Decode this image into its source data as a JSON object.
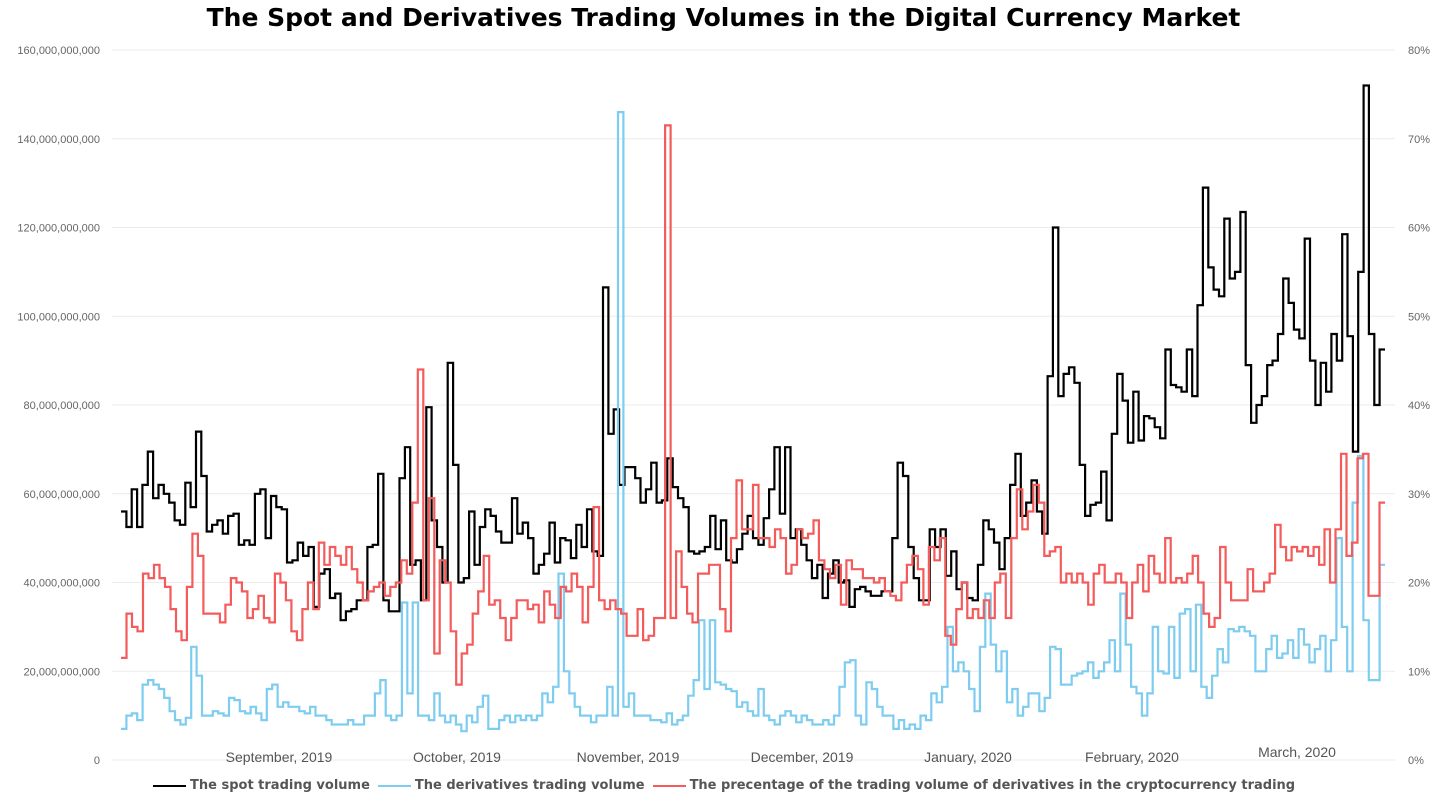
{
  "chart_data": {
    "type": "line",
    "title": "The Spot and Derivatives Trading Volumes in the Digital Currency Market",
    "x_labels": [
      "September, 2019",
      "October, 2019",
      "November, 2019",
      "December, 2019",
      "January, 2020",
      "February, 2020",
      "March, 2020"
    ],
    "y_left": {
      "ticks": [
        "0",
        "20,000,000,000",
        "40,000,000,000",
        "60,000,000,000",
        "80,000,000,000",
        "100,000,000,000",
        "120,000,000,000",
        "140,000,000,000",
        "160,000,000,000"
      ],
      "range": [
        0,
        160000000000
      ]
    },
    "y_right": {
      "ticks": [
        "0%",
        "10%",
        "20%",
        "30%",
        "40%",
        "50%",
        "60%",
        "70%",
        "80%"
      ],
      "range": [
        0,
        80
      ]
    },
    "series": [
      {
        "name": "The spot trading volume",
        "color": "#000000",
        "axis": "left",
        "unit": "billion",
        "values": [
          56,
          52.5,
          61,
          52.5,
          62,
          69.5,
          59,
          62,
          60,
          58,
          54,
          53,
          62.5,
          57,
          74,
          64,
          51.5,
          53,
          54,
          51,
          55,
          55.5,
          48.5,
          49.5,
          48.5,
          60,
          61,
          50,
          59.5,
          57,
          56.5,
          44.5,
          45,
          49,
          46,
          48,
          34.5,
          42,
          43,
          36.5,
          37.5,
          31.5,
          33.5,
          34,
          36,
          36,
          48,
          48.5,
          64.5,
          36,
          33.5,
          33.5,
          63.5,
          70.5,
          44,
          45,
          36,
          79.5,
          54,
          48,
          40,
          89.5,
          66.5,
          40,
          41,
          56,
          44,
          52.5,
          56.5,
          55,
          51.5,
          49,
          49,
          59,
          51,
          53.5,
          50,
          42,
          44,
          46.5,
          53.5,
          44.5,
          50,
          49.5,
          45.5,
          53,
          48,
          56.5,
          47,
          46,
          106.5,
          73.5,
          79,
          62,
          66,
          66,
          63.5,
          58,
          61,
          67,
          58,
          58.5,
          68,
          61.5,
          59,
          57,
          47,
          46.5,
          47,
          48,
          55,
          47.5,
          54,
          45,
          44.5,
          47.5,
          51,
          55,
          50,
          48.5,
          54.5,
          61,
          70.5,
          55.5,
          70.5,
          50,
          52,
          48.5,
          45,
          41,
          44,
          36.5,
          42,
          45,
          40,
          40.5,
          34.5,
          38.5,
          39,
          38,
          37,
          37,
          38,
          38,
          50,
          67,
          64,
          48,
          41,
          36,
          36,
          52,
          48,
          52,
          41.5,
          47,
          38.5,
          40,
          36.5,
          36,
          44,
          54,
          52,
          49,
          43,
          50,
          62,
          69,
          55,
          58,
          63,
          56,
          51,
          86.5,
          120,
          82,
          87,
          88.5,
          85,
          66.5,
          55,
          57.5,
          58,
          65,
          54,
          73.5,
          87,
          81,
          71.5,
          83,
          72,
          77.5,
          77,
          75,
          72.5,
          92.5,
          84.5,
          84,
          83,
          92.5,
          82,
          102.5,
          129,
          111,
          106,
          104.5,
          122,
          108.5,
          110,
          123.5,
          89,
          76,
          80,
          82,
          89,
          90,
          96,
          108.5,
          103,
          97,
          95,
          117.5,
          90,
          80,
          89.5,
          83,
          96,
          90,
          118.5,
          95.5,
          69.5,
          110,
          152,
          96,
          80,
          92.5
        ]
      },
      {
        "name": "The derivatives trading volume",
        "color": "#7ecdf0",
        "axis": "left",
        "unit": "billion",
        "values": [
          7,
          10,
          10.5,
          9,
          17,
          18,
          17,
          16,
          14,
          11,
          9,
          8,
          9.5,
          25.5,
          19,
          10,
          10,
          11,
          10.5,
          10,
          14,
          13.5,
          11,
          10.5,
          12,
          10.5,
          9,
          16,
          17,
          12,
          13,
          12,
          12,
          11,
          10.5,
          12,
          10,
          10,
          9,
          8,
          8,
          8,
          9,
          8,
          8,
          10,
          10,
          15,
          18,
          10,
          9,
          10,
          35.5,
          15,
          35.5,
          10,
          10,
          9,
          15,
          10,
          8.5,
          10,
          8,
          6.5,
          10,
          8.5,
          12,
          14.5,
          7,
          7,
          9,
          10,
          8.5,
          10,
          9,
          10,
          9,
          10,
          15,
          13,
          16.5,
          42,
          20,
          15,
          12,
          10,
          10,
          8.5,
          10,
          10,
          16.5,
          10,
          146,
          12,
          15,
          10,
          10,
          10,
          9,
          9,
          8.5,
          10.5,
          8,
          9,
          10,
          14.5,
          18,
          31.5,
          16,
          31.5,
          17.5,
          17,
          16,
          15.5,
          12,
          13,
          11,
          10,
          16,
          10,
          9,
          8,
          10,
          11,
          10,
          8.5,
          10,
          9,
          8,
          8,
          9,
          8,
          10,
          16.5,
          22,
          22.5,
          10,
          8,
          17.5,
          16,
          12,
          10,
          10,
          7,
          9,
          7,
          8,
          7,
          10,
          9,
          15,
          13,
          16.5,
          30,
          20,
          22,
          20,
          16,
          11,
          25.5,
          37.5,
          26,
          20,
          24.5,
          13,
          16,
          10,
          12,
          15,
          15,
          11,
          14,
          25.5,
          25,
          17,
          17,
          19,
          19.5,
          20,
          22,
          18.5,
          20,
          22,
          27,
          20,
          37.5,
          26,
          16.5,
          15,
          10,
          15,
          30,
          20,
          19.5,
          30,
          18.5,
          33,
          34,
          20,
          35,
          16.5,
          14,
          19,
          25,
          22,
          29.5,
          29,
          30,
          29,
          28,
          20,
          20,
          25,
          28,
          23,
          24,
          27,
          23,
          29.5,
          26,
          22,
          25,
          28,
          20,
          27,
          50,
          30,
          20,
          58,
          68.5,
          31.5,
          18,
          18,
          44
        ]
      },
      {
        "name": "The precentage of the trading volume of derivatives in the cryptocurrency trading",
        "color": "#f45b5b",
        "axis": "right",
        "unit": "percent",
        "values": [
          11.5,
          16.5,
          15,
          14.5,
          21,
          20.5,
          22,
          20.5,
          19.5,
          17,
          14.5,
          13.5,
          19.5,
          25.5,
          23,
          16.5,
          16.5,
          16.5,
          15.5,
          17.5,
          20.5,
          20,
          19,
          16,
          17,
          18.5,
          16,
          15.5,
          21,
          20,
          18,
          14.5,
          13.5,
          17,
          20,
          17,
          24.5,
          22,
          24,
          23,
          22,
          24,
          21.5,
          20,
          18,
          19,
          19.5,
          20,
          18.5,
          19.5,
          20,
          22.5,
          21,
          29,
          44,
          18,
          29.5,
          12,
          22.5,
          20,
          14.5,
          8.5,
          12,
          13,
          16.5,
          19,
          23,
          17.5,
          18,
          16,
          13.5,
          16,
          18,
          18,
          17,
          17.5,
          15.5,
          19,
          17.5,
          16,
          19.5,
          19,
          21,
          19.5,
          15.5,
          19.5,
          28.5,
          18,
          17,
          18,
          17,
          16.5,
          14,
          14,
          17,
          13.5,
          14,
          16,
          16,
          71.5,
          16,
          23.5,
          19.5,
          16.5,
          15.5,
          21,
          21,
          22,
          22,
          17,
          14.5,
          25,
          31.5,
          26,
          26,
          31,
          25,
          25,
          24,
          26,
          25,
          21,
          22,
          26,
          25,
          25.5,
          27,
          22.5,
          21.5,
          20.5,
          22,
          17.5,
          22.5,
          21.5,
          21.5,
          20.5,
          20.5,
          20,
          20.5,
          19,
          18.5,
          18,
          20,
          22,
          23,
          21.5,
          17.5,
          24,
          22.5,
          25,
          14,
          13,
          17,
          20,
          16,
          17,
          16,
          18,
          16,
          20,
          21,
          16,
          25,
          30.5,
          26,
          28,
          31,
          29,
          23,
          23.5,
          24,
          20,
          21,
          20,
          21,
          20,
          17.5,
          21,
          22,
          20,
          20,
          21,
          20,
          16,
          20,
          22,
          19,
          23,
          21,
          20,
          25,
          20,
          20.5,
          20,
          21,
          23,
          20,
          16.5,
          15,
          16,
          24,
          20,
          18,
          18,
          18,
          21.5,
          19,
          19,
          20,
          21,
          26.5,
          24,
          22.5,
          24,
          23.5,
          24,
          23,
          24,
          22,
          26,
          20,
          26,
          34.5,
          23,
          24.5,
          34,
          34.5,
          18.5,
          18.5,
          29
        ]
      }
    ],
    "legend": "bottom",
    "grid": "horizontal"
  }
}
